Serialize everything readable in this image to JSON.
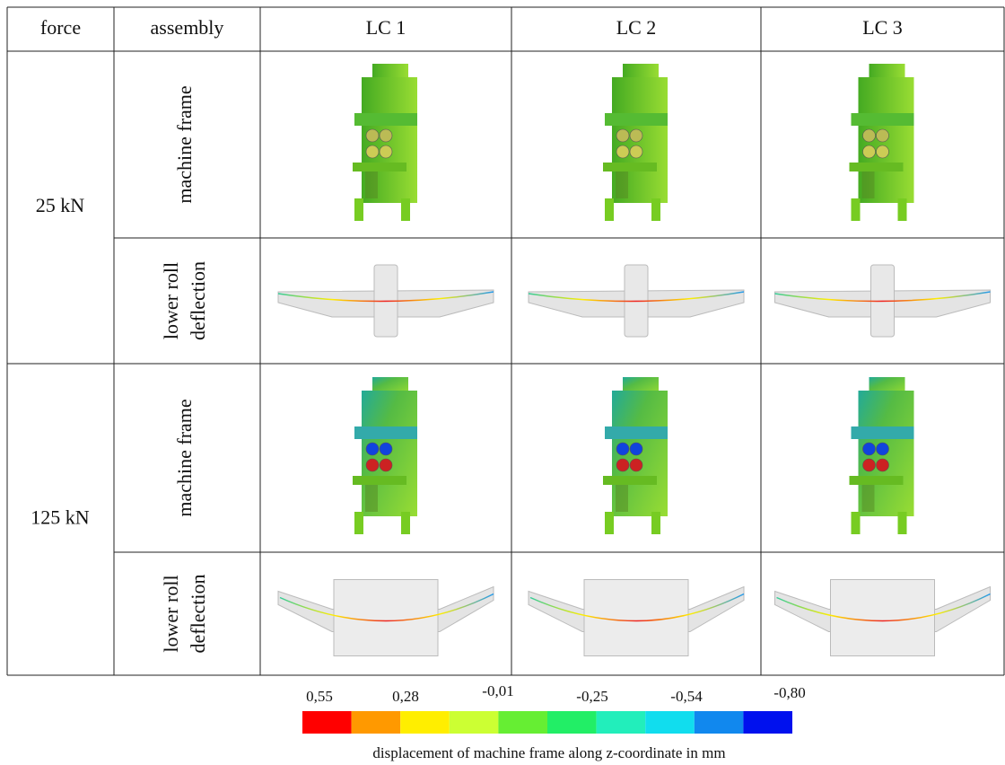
{
  "table": {
    "header": [
      "force",
      "assembly",
      "LC 1",
      "LC 2",
      "LC 3"
    ],
    "groups": [
      {
        "force": "25 kN",
        "rows": [
          [
            "machine frame"
          ],
          [
            "lower roll",
            "deflection"
          ]
        ]
      },
      {
        "force": "125 kN",
        "rows": [
          [
            "machine frame"
          ],
          [
            "lower roll",
            "deflection"
          ]
        ]
      }
    ]
  },
  "legend": {
    "labels": [
      "0,55",
      "0,28",
      "-0,01",
      "-0,25",
      "-0,54",
      "-0,80"
    ],
    "colors": [
      "#ff0000",
      "#ff9900",
      "#ffee00",
      "#ccff33",
      "#66ee33",
      "#22ee66",
      "#22eebb",
      "#11ddee",
      "#1188ee",
      "#0011ee"
    ],
    "caption": "displacement of machine frame along z-coordinate in mm"
  }
}
